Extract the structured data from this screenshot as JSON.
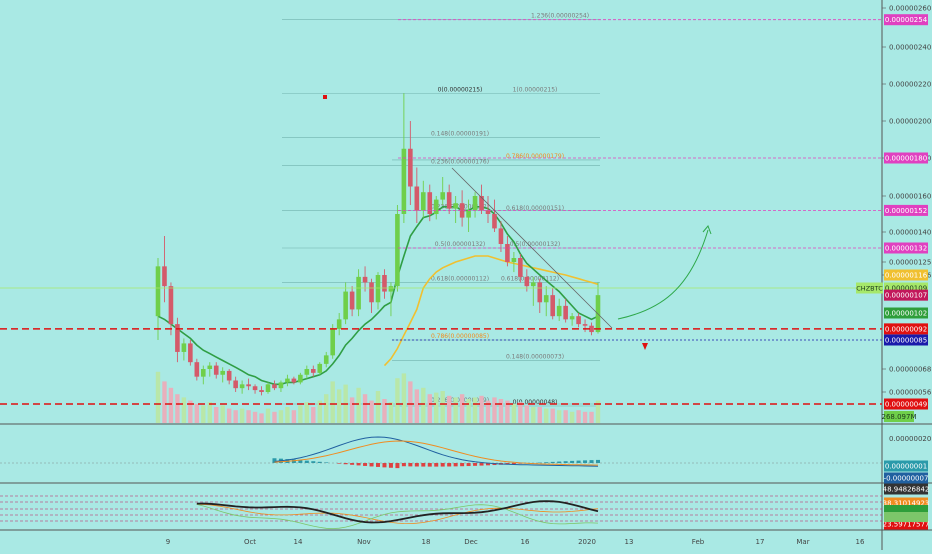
{
  "colors": {
    "background": "#a9e9e4",
    "up": "#6fcf4a",
    "down": "#d45a6a",
    "ema_fast": "#2f9e44",
    "ema_slow": "#f0c030",
    "fib_line": "#4d8f8a",
    "magenta": "#e040c0",
    "red": "#e01010",
    "blue": "#1a1aaa"
  },
  "fib_labels": [
    {
      "text": "1.236(0.00000254)",
      "price": 2.54e-06,
      "color": "#7a7a7a"
    },
    {
      "text": "0(0.00000215)",
      "price": 2.15e-06,
      "color": "#333333"
    },
    {
      "text": "1(0.00000215)",
      "price": 2.15e-06,
      "color": "#7a7a7a"
    },
    {
      "text": "0.148(0.00000191)",
      "price": 1.91e-06,
      "color": "#7a7a7a"
    },
    {
      "text": "0.786(0.00000179)",
      "price": 1.79e-06,
      "color": "#f08c20"
    },
    {
      "text": "0.236(0.00000176)",
      "price": 1.76e-06,
      "color": "#7a7a7a"
    },
    {
      "text": "0.236(0.00000152)",
      "price": 1.52e-06,
      "color": "#7a7a7a"
    },
    {
      "text": "0.618(0.00000151)",
      "price": 1.51e-06,
      "color": "#7a7a7a"
    },
    {
      "text": "0.5(0.00000132)",
      "price": 1.32e-06,
      "color": "#7a7a7a"
    },
    {
      "text": "0.5(0.00000132)",
      "price": 1.32e-06,
      "color": "#7a7a7a"
    },
    {
      "text": "0.618(0.00000112)",
      "price": 1.12e-06,
      "color": "#7a7a7a"
    },
    {
      "text": "0.618(0.00000112)",
      "price": 1.12e-06,
      "color": "#7a7a7a"
    },
    {
      "text": "0.786(0.00000085)",
      "price": 8.5e-07,
      "color": "#f08c20"
    },
    {
      "text": "0.148(0.00000073)",
      "price": 7.3e-07,
      "color": "#7a7a7a"
    },
    {
      "text": "0.236(0.00000049)",
      "price": 4.9e-07,
      "color": "#7a7a7a"
    },
    {
      "text": "0(0.00000048)",
      "price": 4.8e-07,
      "color": "#333333"
    }
  ],
  "chart_data": {
    "type": "candlestick",
    "symbol": "CHZBTC",
    "price_axis_ticks": [
      "0.00000260",
      "0.00000240",
      "0.00000220",
      "0.00000200",
      "0.00000180",
      "0.00000160",
      "0.00000140",
      "0.00000125",
      "0.00000116",
      "0.00000068",
      "0.00000056"
    ],
    "price_tick_values": [
      2.6e-06,
      2.4e-06,
      2.2e-06,
      2e-06,
      1.8e-06,
      1.6e-06,
      1.4e-06,
      1.25e-06,
      1.16e-06,
      6.8e-07,
      5.6e-07
    ],
    "x_axis_labels": [
      "9",
      "Oct",
      "14",
      "Nov",
      "18",
      "Dec",
      "16",
      "2020",
      "13",
      "Feb",
      "17",
      "Mar",
      "16"
    ],
    "ylim": [
      4.4e-07,
      2.64e-06
    ],
    "price_badges": [
      {
        "text": "0.00000254",
        "price": 2.54e-06,
        "bg": "#e040c0",
        "fg": "#ffffff"
      },
      {
        "text": "0.00000180",
        "price": 1.8e-06,
        "bg": "#e040c0",
        "fg": "#ffffff"
      },
      {
        "text": "0.00000152",
        "price": 1.52e-06,
        "bg": "#e040c0",
        "fg": "#ffffff"
      },
      {
        "text": "0.00000132",
        "price": 1.32e-06,
        "bg": "#e040c0",
        "fg": "#ffffff"
      },
      {
        "text": "0.00000116",
        "price": 1.16e-06,
        "bg": "#f0c030",
        "fg": "#ffffff"
      },
      {
        "text": "0.00000109",
        "price": 1.09e-06,
        "bg": "#a6e86a",
        "fg": "#1a3a1a"
      },
      {
        "text": "0.00000107",
        "price": 1.07e-06,
        "bg": "#c2185b",
        "fg": "#ffffff"
      },
      {
        "text": "0.00000102",
        "price": 1.02e-06,
        "bg": "#2e9e3a",
        "fg": "#ffffff"
      },
      {
        "text": "0.00000092",
        "price": 9.2e-07,
        "bg": "#e01010",
        "fg": "#ffffff"
      },
      {
        "text": "0.00000085",
        "price": 8.5e-07,
        "bg": "#1a1aaa",
        "fg": "#ffffff"
      },
      {
        "text": "0.00000049",
        "price": 4.9e-07,
        "bg": "#e01010",
        "fg": "#ffffff"
      }
    ],
    "volume_label": "268.097M",
    "macd": {
      "ticks": [
        "0.00000020"
      ],
      "badges": [
        {
          "text": "0.00000001",
          "bg": "#2a9aaa",
          "fg": "#ffffff"
        },
        {
          "text": "-0.00000007",
          "bg": "#2060a0",
          "fg": "#ffffff"
        }
      ]
    },
    "rsi": {
      "badges": [
        {
          "text": "48.94826842",
          "bg": "#333333",
          "fg": "#ffffff"
        },
        {
          "text": "38.31014923",
          "bg": "#f08c20",
          "fg": "#ffffff"
        },
        {
          "text": "23.59717577",
          "bg": "#e01010",
          "fg": "#ffffff"
        }
      ]
    },
    "ohlc": [
      [
        1.0,
        1.27,
        0.85,
        1.22
      ],
      [
        1.22,
        1.38,
        1.05,
        1.1
      ],
      [
        1.1,
        1.12,
        0.88,
        0.95
      ],
      [
        0.95,
        0.99,
        0.72,
        0.78
      ],
      [
        0.78,
        0.86,
        0.73,
        0.83
      ],
      [
        0.83,
        0.85,
        0.7,
        0.72
      ],
      [
        0.72,
        0.74,
        0.62,
        0.64
      ],
      [
        0.64,
        0.7,
        0.6,
        0.68
      ],
      [
        0.68,
        0.72,
        0.64,
        0.7
      ],
      [
        0.7,
        0.72,
        0.63,
        0.65
      ],
      [
        0.65,
        0.69,
        0.61,
        0.67
      ],
      [
        0.67,
        0.68,
        0.6,
        0.62
      ],
      [
        0.62,
        0.64,
        0.56,
        0.58
      ],
      [
        0.58,
        0.62,
        0.55,
        0.6
      ],
      [
        0.6,
        0.63,
        0.57,
        0.59
      ],
      [
        0.59,
        0.6,
        0.55,
        0.57
      ],
      [
        0.57,
        0.59,
        0.54,
        0.56
      ],
      [
        0.56,
        0.61,
        0.55,
        0.6
      ],
      [
        0.6,
        0.62,
        0.57,
        0.58
      ],
      [
        0.58,
        0.62,
        0.56,
        0.61
      ],
      [
        0.61,
        0.65,
        0.59,
        0.63
      ],
      [
        0.63,
        0.64,
        0.6,
        0.61
      ],
      [
        0.61,
        0.66,
        0.6,
        0.65
      ],
      [
        0.65,
        0.7,
        0.63,
        0.68
      ],
      [
        0.68,
        0.7,
        0.64,
        0.66
      ],
      [
        0.66,
        0.72,
        0.65,
        0.71
      ],
      [
        0.71,
        0.78,
        0.69,
        0.76
      ],
      [
        0.76,
        0.95,
        0.74,
        0.92
      ],
      [
        0.92,
        1.02,
        0.88,
        0.98
      ],
      [
        0.98,
        1.12,
        0.95,
        1.08
      ],
      [
        1.08,
        1.1,
        1.0,
        1.03
      ],
      [
        1.03,
        1.2,
        1.0,
        1.15
      ],
      [
        1.15,
        1.22,
        1.08,
        1.12
      ],
      [
        1.12,
        1.14,
        1.02,
        1.05
      ],
      [
        1.05,
        1.18,
        1.03,
        1.16
      ],
      [
        1.16,
        1.2,
        1.06,
        1.08
      ],
      [
        1.08,
        1.12,
        1.0,
        1.1
      ],
      [
        1.1,
        1.55,
        1.08,
        1.5
      ],
      [
        1.5,
        2.15,
        1.45,
        1.85
      ],
      [
        1.85,
        2.0,
        1.55,
        1.65
      ],
      [
        1.65,
        1.75,
        1.45,
        1.52
      ],
      [
        1.52,
        1.68,
        1.48,
        1.62
      ],
      [
        1.62,
        1.66,
        1.46,
        1.5
      ],
      [
        1.5,
        1.6,
        1.47,
        1.58
      ],
      [
        1.58,
        1.7,
        1.55,
        1.62
      ],
      [
        1.62,
        1.66,
        1.5,
        1.53
      ],
      [
        1.53,
        1.6,
        1.45,
        1.56
      ],
      [
        1.56,
        1.63,
        1.43,
        1.48
      ],
      [
        1.48,
        1.58,
        1.4,
        1.52
      ],
      [
        1.52,
        1.62,
        1.48,
        1.6
      ],
      [
        1.6,
        1.66,
        1.5,
        1.52
      ],
      [
        1.52,
        1.6,
        1.45,
        1.5
      ],
      [
        1.5,
        1.58,
        1.4,
        1.42
      ],
      [
        1.42,
        1.46,
        1.3,
        1.34
      ],
      [
        1.34,
        1.38,
        1.22,
        1.25
      ],
      [
        1.25,
        1.3,
        1.18,
        1.27
      ],
      [
        1.27,
        1.29,
        1.12,
        1.15
      ],
      [
        1.15,
        1.2,
        1.08,
        1.1
      ],
      [
        1.1,
        1.15,
        1.04,
        1.12
      ],
      [
        1.12,
        1.14,
        1.02,
        1.05
      ],
      [
        1.05,
        1.1,
        1.0,
        1.07
      ],
      [
        1.07,
        1.09,
        0.98,
        1.0
      ],
      [
        1.0,
        1.06,
        0.97,
        1.04
      ],
      [
        1.04,
        1.06,
        0.96,
        0.98
      ],
      [
        0.98,
        1.02,
        0.94,
        1.0
      ],
      [
        1.0,
        1.02,
        0.93,
        0.95
      ],
      [
        0.95,
        0.98,
        0.9,
        0.94
      ],
      [
        0.94,
        0.96,
        0.88,
        0.9
      ],
      [
        0.9,
        1.12,
        0.89,
        1.07
      ]
    ],
    "volume": [
      3.2,
      2.6,
      2.2,
      1.8,
      1.6,
      1.4,
      1.2,
      1.1,
      1.3,
      1.0,
      1.1,
      0.9,
      0.8,
      0.9,
      0.8,
      0.7,
      0.6,
      0.9,
      0.7,
      0.8,
      1.0,
      0.8,
      1.1,
      1.3,
      1.0,
      1.4,
      1.8,
      2.6,
      2.1,
      2.4,
      1.6,
      2.2,
      1.8,
      1.4,
      2.0,
      1.5,
      1.3,
      2.8,
      3.1,
      2.6,
      2.1,
      2.2,
      1.8,
      1.9,
      2.0,
      1.7,
      1.6,
      1.8,
      1.5,
      1.6,
      1.7,
      1.4,
      1.6,
      1.5,
      1.4,
      1.2,
      1.3,
      1.1,
      1.0,
      1.0,
      0.9,
      0.9,
      0.8,
      0.8,
      0.7,
      0.8,
      0.7,
      0.7,
      1.4
    ],
    "ema_fast": [
      1.0,
      0.98,
      0.95,
      0.92,
      0.89,
      0.86,
      0.82,
      0.79,
      0.77,
      0.75,
      0.73,
      0.71,
      0.69,
      0.67,
      0.65,
      0.64,
      0.62,
      0.61,
      0.6,
      0.6,
      0.61,
      0.61,
      0.62,
      0.63,
      0.64,
      0.65,
      0.67,
      0.71,
      0.76,
      0.82,
      0.86,
      0.91,
      0.95,
      0.98,
      1.02,
      1.04,
      1.05,
      1.15,
      1.28,
      1.38,
      1.43,
      1.48,
      1.49,
      1.51,
      1.54,
      1.54,
      1.54,
      1.52,
      1.52,
      1.54,
      1.54,
      1.53,
      1.5,
      1.45,
      1.39,
      1.35,
      1.29,
      1.24,
      1.2,
      1.16,
      1.13,
      1.1,
      1.08,
      1.06,
      1.04,
      1.02,
      1.0,
      0.98,
      1.0
    ],
    "ema_slow": [
      null,
      null,
      null,
      null,
      null,
      null,
      null,
      null,
      null,
      null,
      null,
      null,
      null,
      null,
      null,
      null,
      null,
      null,
      null,
      null,
      null,
      null,
      null,
      null,
      null,
      null,
      null,
      null,
      null,
      null,
      null,
      null,
      null,
      null,
      null,
      0.7,
      0.74,
      0.8,
      0.88,
      0.96,
      1.03,
      1.09,
      1.14,
      1.18,
      1.21,
      1.23,
      1.25,
      1.26,
      1.27,
      1.28,
      1.28,
      1.28,
      1.27,
      1.26,
      1.25,
      1.24,
      1.23,
      1.22,
      1.21,
      1.2,
      1.19,
      1.18,
      1.17,
      1.16,
      1.15,
      1.14,
      1.13,
      1.12,
      1.11
    ]
  }
}
